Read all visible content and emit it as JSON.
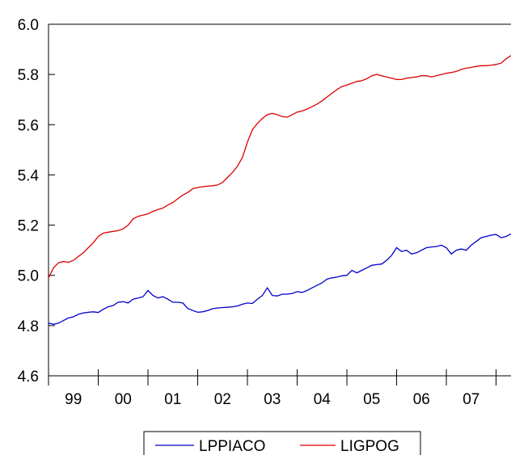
{
  "chart_data": {
    "type": "line",
    "title": "",
    "xlabel": "",
    "ylabel": "",
    "ylim": [
      4.6,
      6.0
    ],
    "yticks": [
      "4.6",
      "4.8",
      "5.0",
      "5.2",
      "5.4",
      "5.6",
      "5.8",
      "6.0"
    ],
    "xlim": [
      1998.5,
      2007.8
    ],
    "xticks": [
      "99",
      "00",
      "01",
      "02",
      "03",
      "04",
      "05",
      "06",
      "07"
    ],
    "grid": false,
    "legend_position": "bottom",
    "series": [
      {
        "name": "LPPIACO",
        "color": "#0000cc",
        "x": [
          1998.5,
          1998.6,
          1998.7,
          1998.8,
          1998.9,
          1999.0,
          1999.1,
          1999.2,
          1999.3,
          1999.4,
          1999.5,
          1999.6,
          1999.7,
          1999.8,
          1999.9,
          2000.0,
          2000.1,
          2000.2,
          2000.3,
          2000.4,
          2000.5,
          2000.6,
          2000.7,
          2000.8,
          2000.9,
          2001.0,
          2001.1,
          2001.2,
          2001.3,
          2001.4,
          2001.5,
          2001.6,
          2001.7,
          2001.8,
          2001.9,
          2002.0,
          2002.1,
          2002.2,
          2002.3,
          2002.4,
          2002.5,
          2002.6,
          2002.7,
          2002.8,
          2002.9,
          2003.0,
          2003.1,
          2003.2,
          2003.3,
          2003.4,
          2003.5,
          2003.6,
          2003.7,
          2003.8,
          2003.9,
          2004.0,
          2004.1,
          2004.2,
          2004.3,
          2004.4,
          2004.5,
          2004.6,
          2004.7,
          2004.8,
          2004.9,
          2005.0,
          2005.1,
          2005.2,
          2005.3,
          2005.4,
          2005.5,
          2005.6,
          2005.7,
          2005.8,
          2005.9,
          2006.0,
          2006.1,
          2006.2,
          2006.3,
          2006.4,
          2006.5,
          2006.6,
          2006.7,
          2006.8,
          2006.9,
          2007.0,
          2007.1,
          2007.2,
          2007.3,
          2007.4,
          2007.5,
          2007.6,
          2007.7,
          2007.8
        ],
        "values": [
          4.81,
          4.805,
          4.81,
          4.82,
          4.83,
          4.835,
          4.845,
          4.85,
          4.853,
          4.855,
          4.852,
          4.865,
          4.875,
          4.88,
          4.893,
          4.895,
          4.89,
          4.905,
          4.91,
          4.915,
          4.94,
          4.92,
          4.91,
          4.915,
          4.905,
          4.893,
          4.893,
          4.89,
          4.868,
          4.86,
          4.853,
          4.855,
          4.86,
          4.867,
          4.87,
          4.872,
          4.873,
          4.875,
          4.878,
          4.885,
          4.89,
          4.888,
          4.905,
          4.92,
          4.95,
          4.92,
          4.918,
          4.925,
          4.925,
          4.928,
          4.935,
          4.932,
          4.94,
          4.95,
          4.96,
          4.97,
          4.985,
          4.99,
          4.993,
          4.998,
          5.0,
          5.02,
          5.01,
          5.02,
          5.03,
          5.04,
          5.043,
          5.045,
          5.06,
          5.08,
          5.11,
          5.095,
          5.1,
          5.085,
          5.09,
          5.1,
          5.11,
          5.113,
          5.115,
          5.12,
          5.11,
          5.085,
          5.1,
          5.105,
          5.1,
          5.12,
          5.135,
          5.15,
          5.155,
          5.16,
          5.163,
          5.15,
          5.155,
          5.165
        ]
      },
      {
        "name": "LIGPOG",
        "color": "#dd0000",
        "x": [
          1998.5,
          1998.6,
          1998.7,
          1998.8,
          1998.9,
          1999.0,
          1999.1,
          1999.2,
          1999.3,
          1999.4,
          1999.5,
          1999.6,
          1999.7,
          1999.8,
          1999.9,
          2000.0,
          2000.1,
          2000.2,
          2000.3,
          2000.4,
          2000.5,
          2000.6,
          2000.7,
          2000.8,
          2000.9,
          2001.0,
          2001.1,
          2001.2,
          2001.3,
          2001.4,
          2001.5,
          2001.6,
          2001.7,
          2001.8,
          2001.9,
          2002.0,
          2002.1,
          2002.2,
          2002.3,
          2002.4,
          2002.5,
          2002.6,
          2002.7,
          2002.8,
          2002.9,
          2003.0,
          2003.1,
          2003.2,
          2003.3,
          2003.4,
          2003.5,
          2003.6,
          2003.7,
          2003.8,
          2003.9,
          2004.0,
          2004.1,
          2004.2,
          2004.3,
          2004.4,
          2004.5,
          2004.6,
          2004.7,
          2004.8,
          2004.9,
          2005.0,
          2005.1,
          2005.2,
          2005.3,
          2005.4,
          2005.5,
          2005.6,
          2005.7,
          2005.8,
          2005.9,
          2006.0,
          2006.1,
          2006.2,
          2006.3,
          2006.4,
          2006.5,
          2006.6,
          2006.7,
          2006.8,
          2006.9,
          2007.0,
          2007.1,
          2007.2,
          2007.3,
          2007.4,
          2007.5,
          2007.6,
          2007.7,
          2007.8
        ],
        "values": [
          4.99,
          5.03,
          5.05,
          5.055,
          5.052,
          5.06,
          5.075,
          5.09,
          5.11,
          5.13,
          5.155,
          5.168,
          5.172,
          5.175,
          5.178,
          5.185,
          5.2,
          5.225,
          5.235,
          5.24,
          5.245,
          5.255,
          5.262,
          5.268,
          5.28,
          5.29,
          5.305,
          5.32,
          5.33,
          5.345,
          5.35,
          5.353,
          5.355,
          5.357,
          5.36,
          5.37,
          5.39,
          5.41,
          5.435,
          5.47,
          5.53,
          5.58,
          5.605,
          5.625,
          5.64,
          5.645,
          5.64,
          5.632,
          5.63,
          5.64,
          5.65,
          5.655,
          5.662,
          5.672,
          5.682,
          5.695,
          5.71,
          5.725,
          5.74,
          5.752,
          5.758,
          5.765,
          5.772,
          5.775,
          5.783,
          5.795,
          5.8,
          5.795,
          5.79,
          5.785,
          5.78,
          5.78,
          5.785,
          5.788,
          5.79,
          5.795,
          5.795,
          5.79,
          5.795,
          5.8,
          5.805,
          5.808,
          5.812,
          5.82,
          5.825,
          5.828,
          5.832,
          5.835,
          5.835,
          5.837,
          5.84,
          5.845,
          5.862,
          5.875
        ]
      }
    ]
  }
}
